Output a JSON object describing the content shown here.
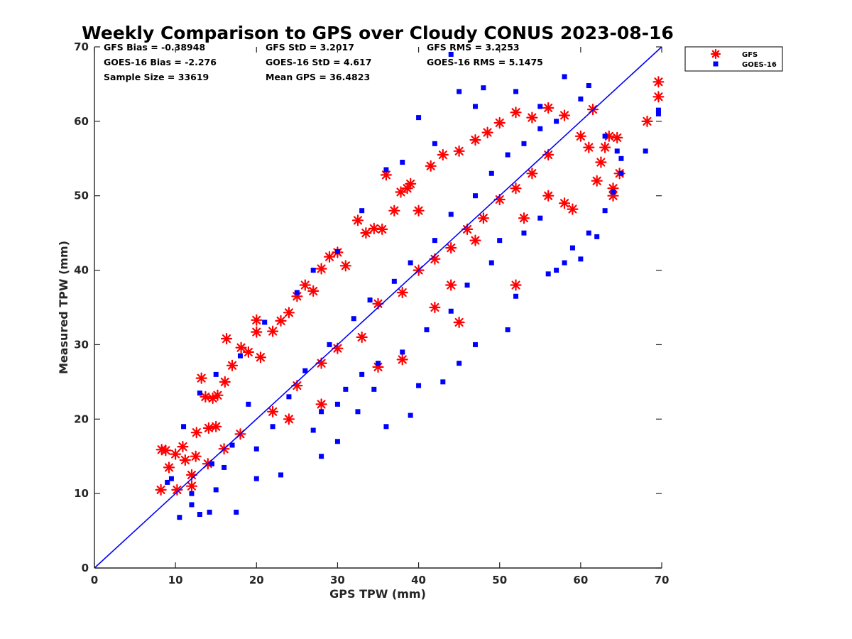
{
  "chart_data": {
    "type": "scatter",
    "title": "Weekly Comparison to GPS over Cloudy CONUS 2023-08-16",
    "xlabel": "GPS TPW (mm)",
    "ylabel": "Measured TPW (mm)",
    "xlim": [
      0,
      70
    ],
    "ylim": [
      0,
      70
    ],
    "xticks": [
      "0",
      "10",
      "20",
      "30",
      "40",
      "50",
      "60",
      "70"
    ],
    "yticks": [
      "0",
      "10",
      "20",
      "30",
      "40",
      "50",
      "60",
      "70"
    ],
    "grid": false,
    "legend_position": "outside-top-right",
    "reference_line": {
      "x": [
        0,
        70
      ],
      "y": [
        0,
        70
      ],
      "color": "#0000ff"
    },
    "stats": [
      [
        "GFS Bias = -0.38948",
        "GFS StD = 3.2017",
        "GFS RMS = 3.2253"
      ],
      [
        "GOES-16 Bias = -2.276",
        "GOES-16 StD = 4.617",
        "GOES-16 RMS = 5.1475"
      ],
      [
        "Sample Size = 33619",
        "Mean GPS = 36.4823",
        ""
      ]
    ],
    "series": [
      {
        "name": "GFS",
        "marker": "asterisk",
        "color": "#ff0000",
        "points": [
          [
            8.3,
            15.9
          ],
          [
            8.8,
            15.8
          ],
          [
            9.2,
            13.5
          ],
          [
            8.2,
            10.5
          ],
          [
            10.2,
            10.5
          ],
          [
            10.0,
            15.3
          ],
          [
            10.9,
            16.3
          ],
          [
            11.2,
            14.5
          ],
          [
            12.0,
            12.5
          ],
          [
            12.5,
            15.0
          ],
          [
            12.6,
            18.2
          ],
          [
            13.2,
            25.5
          ],
          [
            13.7,
            23.0
          ],
          [
            14.1,
            18.8
          ],
          [
            14.6,
            22.8
          ],
          [
            15.0,
            19.0
          ],
          [
            15.2,
            23.2
          ],
          [
            16.1,
            25.0
          ],
          [
            16.3,
            30.8
          ],
          [
            17.0,
            27.2
          ],
          [
            18.1,
            29.6
          ],
          [
            19.0,
            29.0
          ],
          [
            20.0,
            33.3
          ],
          [
            20.0,
            31.7
          ],
          [
            20.5,
            28.3
          ],
          [
            22.0,
            31.8
          ],
          [
            23.0,
            33.2
          ],
          [
            24.0,
            34.3
          ],
          [
            25.0,
            36.5
          ],
          [
            26.0,
            38.0
          ],
          [
            27.0,
            37.2
          ],
          [
            28.0,
            40.2
          ],
          [
            29.0,
            41.8
          ],
          [
            30.0,
            42.4
          ],
          [
            31.0,
            40.6
          ],
          [
            32.5,
            46.7
          ],
          [
            33.5,
            45.0
          ],
          [
            34.5,
            45.6
          ],
          [
            35.5,
            45.5
          ],
          [
            36.0,
            52.8
          ],
          [
            37.0,
            48.0
          ],
          [
            37.8,
            50.5
          ],
          [
            38.6,
            51.0
          ],
          [
            39.0,
            51.6
          ],
          [
            40.0,
            48.0
          ],
          [
            41.5,
            54.0
          ],
          [
            43.0,
            55.5
          ],
          [
            45.0,
            56.0
          ],
          [
            47.0,
            57.5
          ],
          [
            48.5,
            58.5
          ],
          [
            50.0,
            59.8
          ],
          [
            52.0,
            61.2
          ],
          [
            54.0,
            60.5
          ],
          [
            56.0,
            61.8
          ],
          [
            58.0,
            60.8
          ],
          [
            59.0,
            48.2
          ],
          [
            60.0,
            58.0
          ],
          [
            61.0,
            56.5
          ],
          [
            61.5,
            61.6
          ],
          [
            62.0,
            52.0
          ],
          [
            62.5,
            54.5
          ],
          [
            63.0,
            56.5
          ],
          [
            63.5,
            58.0
          ],
          [
            64.0,
            50.0
          ],
          [
            64.0,
            51.0
          ],
          [
            64.5,
            57.8
          ],
          [
            64.8,
            53.0
          ],
          [
            68.2,
            60.0
          ],
          [
            69.6,
            65.3
          ],
          [
            69.6,
            63.3
          ],
          [
            22.0,
            21.0
          ],
          [
            25.0,
            24.5
          ],
          [
            28.0,
            27.5
          ],
          [
            30.0,
            29.5
          ],
          [
            33.0,
            31.0
          ],
          [
            35.0,
            35.5
          ],
          [
            38.0,
            37.0
          ],
          [
            40.0,
            40.0
          ],
          [
            42.0,
            41.5
          ],
          [
            44.0,
            43.0
          ],
          [
            46.0,
            45.5
          ],
          [
            48.0,
            47.0
          ],
          [
            50.0,
            49.5
          ],
          [
            52.0,
            51.0
          ],
          [
            54.0,
            53.0
          ],
          [
            56.0,
            55.5
          ],
          [
            44.0,
            38.0
          ],
          [
            47.0,
            44.0
          ],
          [
            52.0,
            38.0
          ],
          [
            53.0,
            47.0
          ],
          [
            56.0,
            50.0
          ],
          [
            58.0,
            49.0
          ],
          [
            35.0,
            27.0
          ],
          [
            28.0,
            22.0
          ],
          [
            24.0,
            20.0
          ],
          [
            18.0,
            18.0
          ],
          [
            16.0,
            16.0
          ],
          [
            14.0,
            14.0
          ],
          [
            12.0,
            11.0
          ],
          [
            45.0,
            33.0
          ],
          [
            42.0,
            35.0
          ],
          [
            38.0,
            28.0
          ]
        ]
      },
      {
        "name": "GOES-16",
        "marker": "square",
        "color": "#0000ff",
        "points": [
          [
            10.5,
            6.8
          ],
          [
            12.0,
            8.5
          ],
          [
            13.0,
            7.2
          ],
          [
            14.2,
            7.5
          ],
          [
            17.5,
            7.5
          ],
          [
            12.0,
            10.0
          ],
          [
            15.0,
            10.5
          ],
          [
            20.0,
            12.0
          ],
          [
            23.0,
            12.5
          ],
          [
            28.0,
            15.0
          ],
          [
            30.0,
            17.0
          ],
          [
            36.0,
            19.0
          ],
          [
            39.0,
            20.5
          ],
          [
            32.5,
            21.0
          ],
          [
            34.5,
            24.0
          ],
          [
            40.0,
            24.5
          ],
          [
            45.0,
            27.5
          ],
          [
            43.0,
            25.0
          ],
          [
            47.0,
            30.0
          ],
          [
            51.0,
            32.0
          ],
          [
            52.0,
            36.5
          ],
          [
            56.0,
            39.5
          ],
          [
            58.0,
            41.0
          ],
          [
            60.0,
            41.5
          ],
          [
            62.0,
            44.5
          ],
          [
            59.0,
            43.0
          ],
          [
            57.0,
            40.0
          ],
          [
            61.0,
            45.0
          ],
          [
            63.0,
            48.0
          ],
          [
            64.0,
            50.5
          ],
          [
            65.0,
            55.0
          ],
          [
            63.0,
            58.0
          ],
          [
            60.0,
            63.0
          ],
          [
            58.0,
            66.0
          ],
          [
            61.0,
            64.8
          ],
          [
            55.0,
            62.0
          ],
          [
            52.0,
            64.0
          ],
          [
            48.0,
            64.5
          ],
          [
            45.0,
            64.0
          ],
          [
            44.0,
            69.0
          ],
          [
            47.0,
            62.0
          ],
          [
            40.0,
            60.5
          ],
          [
            42.0,
            57.0
          ],
          [
            38.0,
            54.5
          ],
          [
            36.0,
            53.5
          ],
          [
            33.0,
            48.0
          ],
          [
            30.0,
            42.5
          ],
          [
            27.0,
            40.0
          ],
          [
            25.0,
            37.0
          ],
          [
            21.0,
            33.0
          ],
          [
            18.0,
            28.5
          ],
          [
            15.0,
            26.0
          ],
          [
            13.0,
            23.5
          ],
          [
            11.0,
            19.0
          ],
          [
            9.5,
            12.0
          ],
          [
            9.0,
            11.5
          ],
          [
            68.0,
            56.0
          ],
          [
            69.6,
            61.0
          ],
          [
            69.6,
            61.5
          ],
          [
            65.0,
            53.0
          ],
          [
            64.5,
            56.0
          ],
          [
            28.0,
            21.0
          ],
          [
            31.0,
            24.0
          ],
          [
            35.0,
            27.5
          ],
          [
            38.0,
            29.0
          ],
          [
            41.0,
            32.0
          ],
          [
            44.0,
            34.5
          ],
          [
            46.0,
            38.0
          ],
          [
            49.0,
            41.0
          ],
          [
            50.0,
            44.0
          ],
          [
            53.0,
            45.0
          ],
          [
            55.0,
            47.0
          ],
          [
            26.0,
            26.5
          ],
          [
            29.0,
            30.0
          ],
          [
            32.0,
            33.5
          ],
          [
            34.0,
            36.0
          ],
          [
            37.0,
            38.5
          ],
          [
            39.0,
            41.0
          ],
          [
            42.0,
            44.0
          ],
          [
            44.0,
            47.5
          ],
          [
            47.0,
            50.0
          ],
          [
            49.0,
            53.0
          ],
          [
            51.0,
            55.5
          ],
          [
            53.0,
            57.0
          ],
          [
            55.0,
            59.0
          ],
          [
            57.0,
            60.0
          ],
          [
            22.0,
            19.0
          ],
          [
            24.0,
            23.0
          ],
          [
            19.0,
            22.0
          ],
          [
            17.0,
            16.5
          ],
          [
            16.0,
            13.5
          ],
          [
            20.0,
            16.0
          ],
          [
            14.5,
            14.0
          ],
          [
            27.0,
            18.5
          ],
          [
            30.0,
            22.0
          ],
          [
            33.0,
            26.0
          ]
        ]
      }
    ]
  }
}
